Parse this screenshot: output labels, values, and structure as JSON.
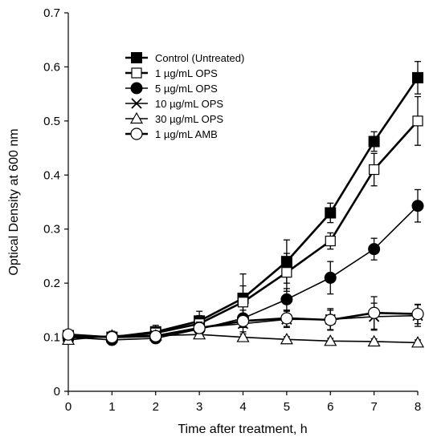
{
  "chart_data": {
    "type": "line",
    "title": "",
    "xlabel": "Time after treatment, h",
    "ylabel": "Optical Density at 600 nm",
    "xlim": [
      0,
      8
    ],
    "ylim": [
      0,
      0.7
    ],
    "x_ticks": [
      0,
      1,
      2,
      3,
      4,
      5,
      6,
      7,
      8
    ],
    "y_ticks": [
      0,
      0.1,
      0.2,
      0.3,
      0.4,
      0.5,
      0.6,
      0.7
    ],
    "x_tick_labels": [
      "0",
      "1",
      "2",
      "3",
      "4",
      "5",
      "6",
      "7",
      "8"
    ],
    "y_tick_labels": [
      "0",
      "0.1",
      "0.2",
      "0.3",
      "0.4",
      "0.5",
      "0.6",
      "0.7"
    ],
    "grid": false,
    "legend_position": "top-left",
    "x": [
      0,
      1,
      2,
      3,
      4,
      5,
      6,
      7,
      8
    ],
    "series": [
      {
        "name": "Control (Untreated)",
        "marker": "filled-square",
        "line": "thick",
        "values": [
          0.103,
          0.1,
          0.11,
          0.13,
          0.172,
          0.24,
          0.33,
          0.462,
          0.58
        ],
        "errors": [
          0.008,
          0.008,
          0.012,
          0.018,
          0.045,
          0.04,
          0.018,
          0.018,
          0.03
        ]
      },
      {
        "name": "1 µg/mL OPS",
        "marker": "open-square",
        "line": "thick",
        "values": [
          0.103,
          0.1,
          0.108,
          0.125,
          0.165,
          0.22,
          0.278,
          0.41,
          0.5
        ],
        "errors": [
          0.008,
          0.008,
          0.01,
          0.015,
          0.03,
          0.035,
          0.015,
          0.03,
          0.045
        ]
      },
      {
        "name": "5 µg/mL OPS",
        "marker": "filled-circle",
        "line": "thin",
        "values": [
          0.1,
          0.095,
          0.098,
          0.115,
          0.135,
          0.17,
          0.21,
          0.263,
          0.343
        ],
        "errors": [
          0.008,
          0.008,
          0.008,
          0.01,
          0.015,
          0.02,
          0.03,
          0.02,
          0.03
        ]
      },
      {
        "name": "10 µg/mL OPS",
        "marker": "cross",
        "line": "thin",
        "values": [
          0.1,
          0.1,
          0.103,
          0.118,
          0.125,
          0.133,
          0.133,
          0.138,
          0.14
        ],
        "errors": [
          0.008,
          0.008,
          0.008,
          0.01,
          0.015,
          0.015,
          0.02,
          0.025,
          0.02
        ]
      },
      {
        "name": "30 µg/mL OPS",
        "marker": "open-triangle",
        "line": "thin",
        "values": [
          0.095,
          0.103,
          0.103,
          0.105,
          0.1,
          0.096,
          0.093,
          0.092,
          0.09
        ],
        "errors": [
          0.008,
          0.008,
          0.006,
          0.006,
          0.006,
          0.005,
          0.005,
          0.005,
          0.005
        ]
      },
      {
        "name": "1 µg/mL AMB",
        "marker": "open-circle",
        "line": "thick",
        "values": [
          0.105,
          0.1,
          0.102,
          0.117,
          0.13,
          0.135,
          0.132,
          0.145,
          0.143
        ],
        "errors": [
          0.008,
          0.008,
          0.008,
          0.01,
          0.012,
          0.015,
          0.018,
          0.03,
          0.018
        ]
      }
    ]
  }
}
